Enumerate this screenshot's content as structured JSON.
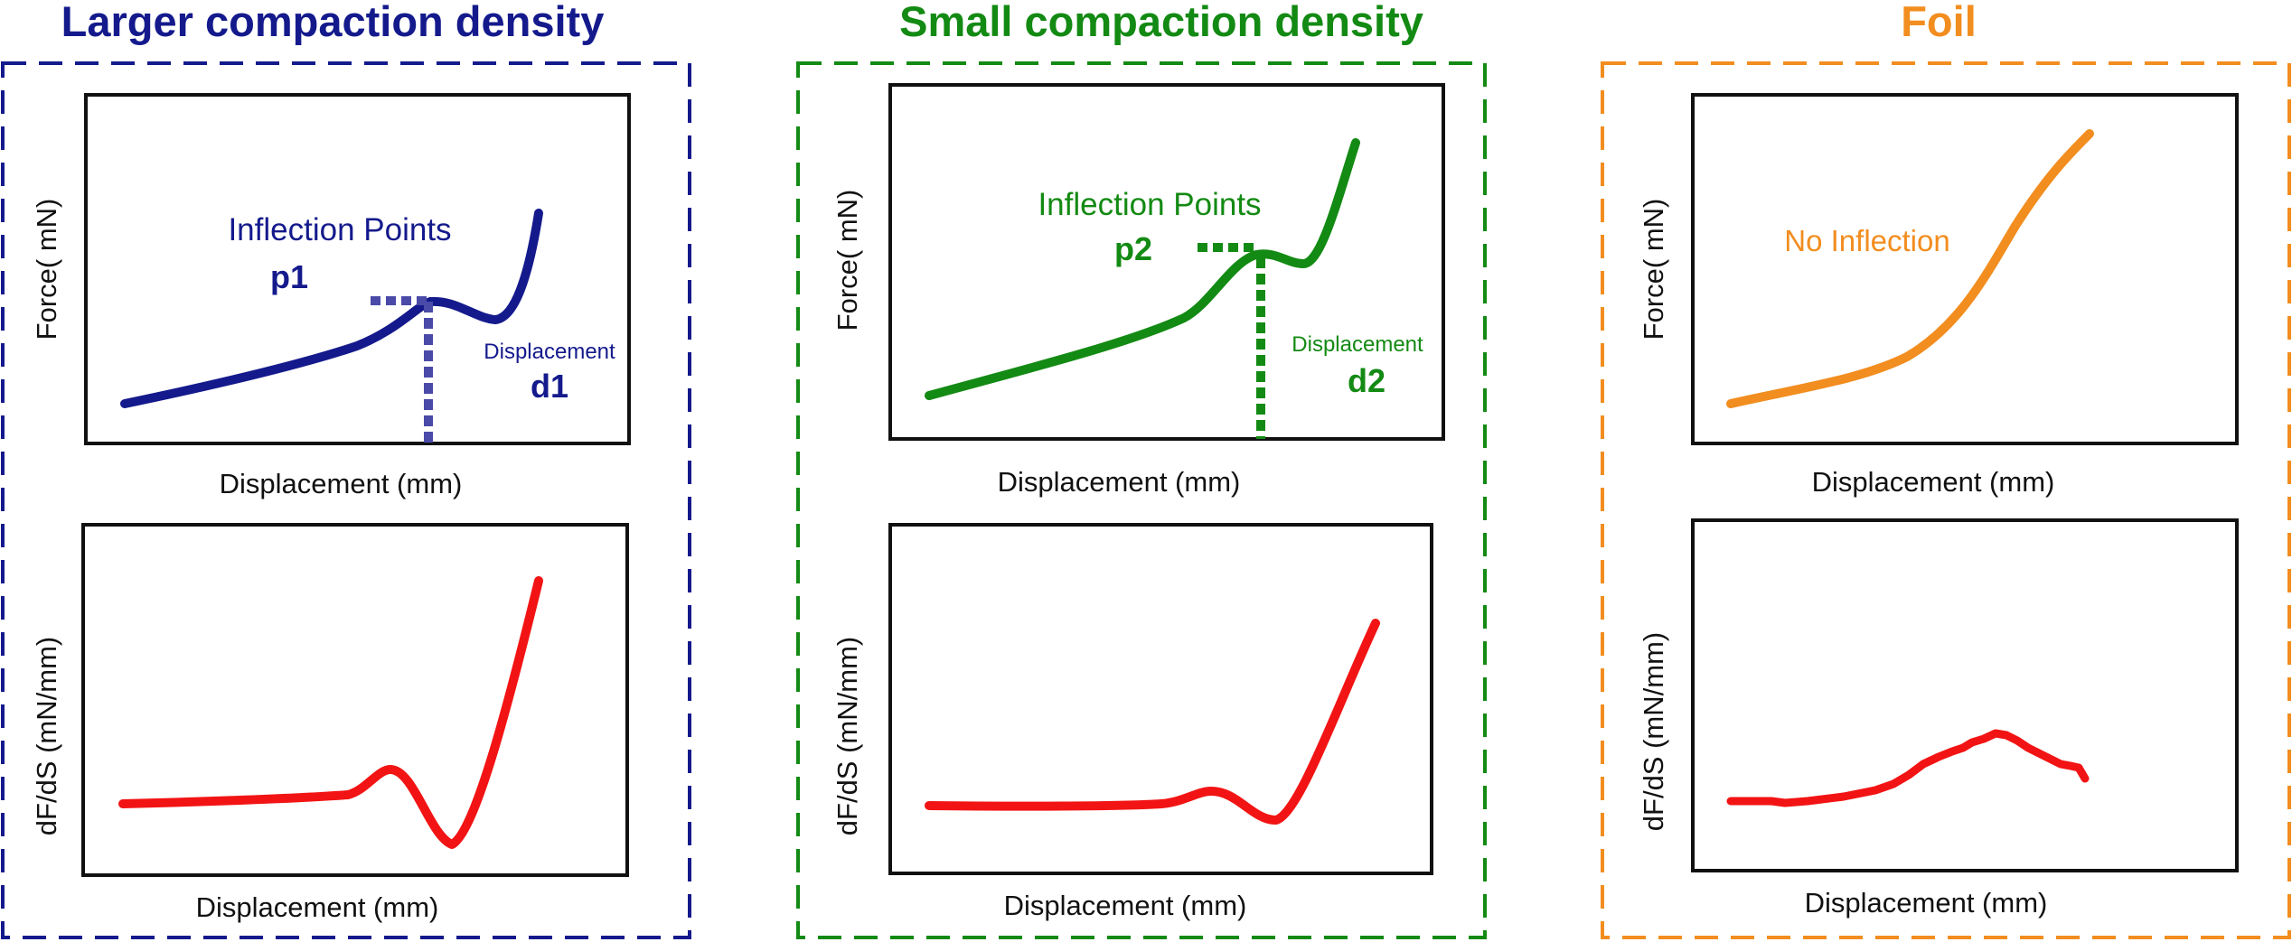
{
  "colors": {
    "large": "#141a8c",
    "large_marker": "#4a4aa8",
    "small": "#138a13",
    "foil": "#f28d1f",
    "derivative": "#f21414",
    "axis": "#111111"
  },
  "panels": {
    "large": {
      "title": "Larger compaction density",
      "force": {
        "ylabel": "Force( mN)",
        "xlabel": "Displacement (mm)",
        "annotation": "Inflection Points",
        "point_label": "p1",
        "disp_label": "Displacement",
        "disp_value": "d1"
      },
      "deriv": {
        "ylabel": "dF/dS (mN/mm)",
        "xlabel": "Displacement (mm)"
      }
    },
    "small": {
      "title": "Small compaction density",
      "force": {
        "ylabel": "Force( mN)",
        "xlabel": "Displacement (mm)",
        "annotation": "Inflection Points",
        "point_label": "p2",
        "disp_label": "Displacement",
        "disp_value": "d2"
      },
      "deriv": {
        "ylabel": "dF/dS (mN/mm)",
        "xlabel": "Displacement (mm)"
      }
    },
    "foil": {
      "title": "Foil",
      "force": {
        "ylabel": "Force( mN)",
        "xlabel": "Displacement (mm)",
        "annotation": "No Inflection"
      },
      "deriv": {
        "ylabel": "dF/dS (mN/mm)",
        "xlabel": "Displacement (mm)"
      }
    }
  }
}
